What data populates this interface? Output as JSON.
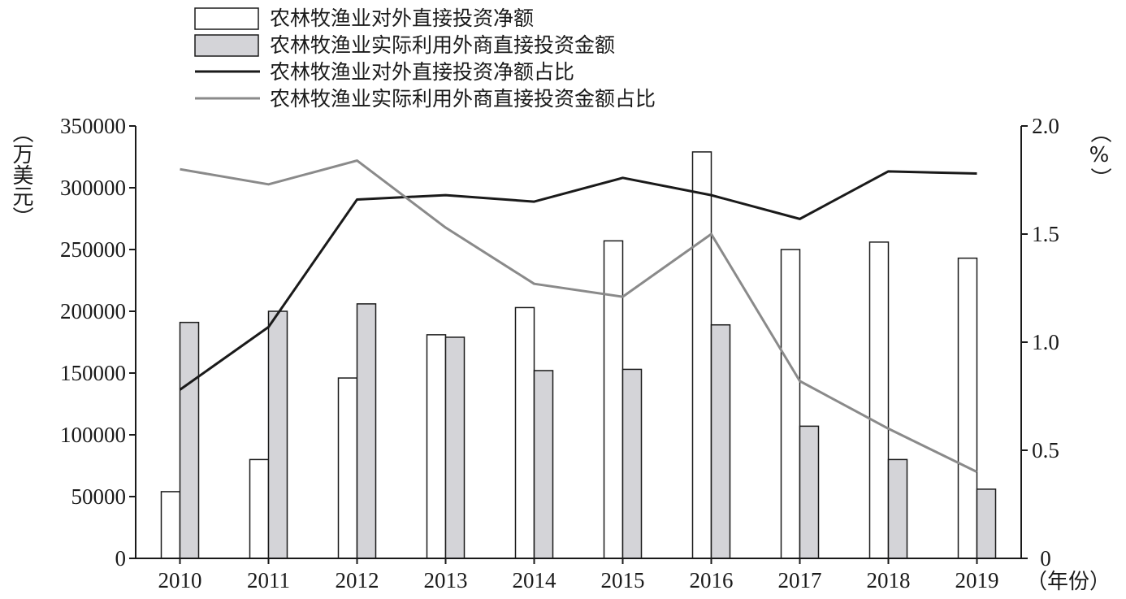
{
  "chart_data": {
    "type": "bar",
    "categories": [
      "2010",
      "2011",
      "2012",
      "2013",
      "2014",
      "2015",
      "2016",
      "2017",
      "2018",
      "2019"
    ],
    "series": [
      {
        "name": "农林牧渔业对外直接投资净额",
        "kind": "bar",
        "axis": "left",
        "color": "#ffffff",
        "values": [
          54000,
          80000,
          146000,
          181000,
          203000,
          257000,
          329000,
          250000,
          256000,
          243000
        ]
      },
      {
        "name": "农林牧渔业实际利用外商直接投资金额",
        "kind": "bar",
        "axis": "left",
        "color": "#d4d4d8",
        "values": [
          191000,
          200000,
          206000,
          179000,
          152000,
          153000,
          189000,
          107000,
          80000,
          56000
        ]
      },
      {
        "name": "农林牧渔业对外直接投资净额占比",
        "kind": "line",
        "axis": "right",
        "color": "#1a1a1a",
        "values": [
          0.78,
          1.07,
          1.66,
          1.68,
          1.65,
          1.76,
          1.68,
          1.57,
          1.79,
          1.78
        ]
      },
      {
        "name": "农林牧渔业实际利用外商直接投资金额占比",
        "kind": "line",
        "axis": "right",
        "color": "#8a8a8a",
        "values": [
          1.8,
          1.73,
          1.84,
          1.53,
          1.27,
          1.21,
          1.5,
          0.82,
          0.6,
          0.4
        ]
      }
    ],
    "ylabel": "（万美元）",
    "y2label": "（%）",
    "xlabel": "（年份）",
    "ylim": [
      0,
      350000
    ],
    "y2lim": [
      0,
      2.0
    ],
    "yticks": [
      "0",
      "50000",
      "100000",
      "150000",
      "200000",
      "250000",
      "300000",
      "350000"
    ],
    "y2ticks": [
      "0",
      "0.5",
      "1.0",
      "1.5",
      "2.0"
    ],
    "legend_position": "top",
    "grid": false
  }
}
